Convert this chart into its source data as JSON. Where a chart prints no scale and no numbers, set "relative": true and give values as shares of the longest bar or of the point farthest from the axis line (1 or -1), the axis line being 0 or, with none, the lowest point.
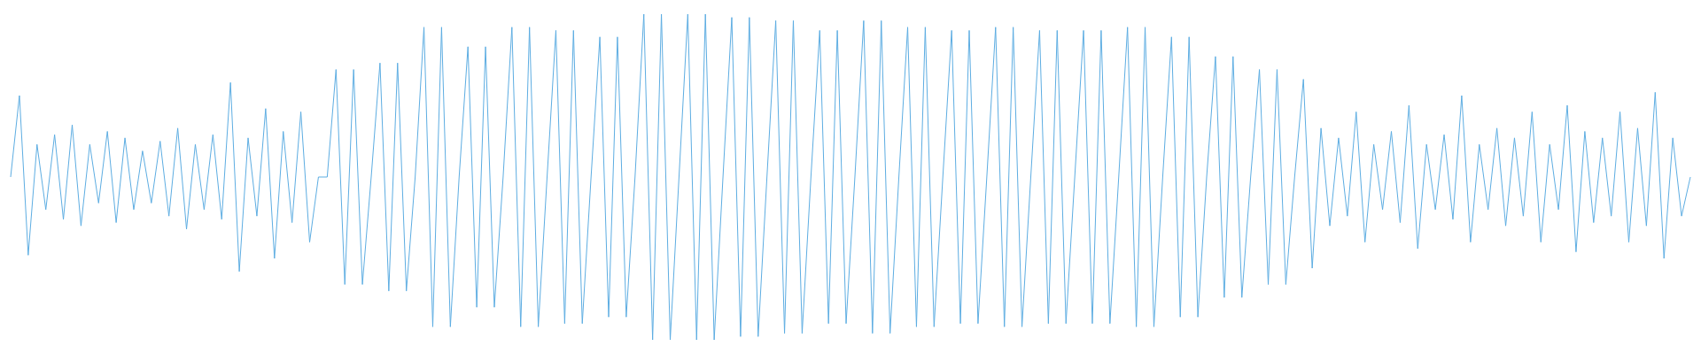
{
  "chart_data": {
    "type": "line",
    "relative": true,
    "grid": false,
    "legend": false,
    "categories": [
      null,
      null,
      null,
      null,
      null,
      null,
      null,
      null,
      null,
      null,
      null,
      null,
      null,
      null,
      null,
      null,
      null,
      null,
      null,
      null,
      null,
      null,
      null,
      null,
      null,
      null,
      null,
      null,
      null,
      null,
      null,
      null,
      null,
      null,
      null,
      null,
      null,
      null,
      null,
      null,
      null,
      null,
      null,
      null,
      null,
      null,
      null,
      null,
      null,
      null,
      null,
      null,
      null,
      null,
      null,
      null,
      null,
      null,
      null,
      null,
      null,
      null,
      null,
      null,
      null,
      null,
      null,
      null,
      null,
      null,
      null,
      null,
      null,
      null,
      null,
      null,
      null,
      null,
      null,
      null,
      null,
      null,
      null,
      null,
      null,
      null,
      null,
      null,
      null,
      null,
      null,
      null,
      null,
      null,
      null,
      null,
      null,
      null,
      null,
      null,
      null,
      null,
      null,
      null,
      null,
      null,
      null,
      null,
      null,
      null,
      null,
      null,
      null,
      null,
      null,
      null,
      null,
      null,
      null,
      null,
      null,
      null,
      null,
      null,
      null,
      null,
      null,
      null,
      null,
      null,
      null,
      null,
      null,
      null,
      null,
      null,
      null,
      null,
      null,
      null,
      null,
      null,
      null,
      null,
      null,
      null,
      null,
      null,
      null,
      null,
      null,
      null,
      null,
      null,
      null,
      null,
      null,
      null,
      null,
      null,
      null,
      null,
      null,
      null,
      null,
      null,
      null,
      null,
      null,
      null,
      null,
      null,
      null,
      null,
      null,
      null,
      null,
      null,
      null,
      null,
      null,
      null,
      null,
      null,
      null,
      null,
      null,
      null,
      null,
      null,
      null,
      null
    ],
    "series": [
      {
        "color": "#5dade2",
        "values": [
          0.5,
          0.75,
          0.26,
          0.6,
          0.4,
          0.63,
          0.37,
          0.66,
          0.35,
          0.6,
          0.42,
          0.64,
          0.36,
          0.62,
          0.4,
          0.58,
          0.42,
          0.61,
          0.38,
          0.65,
          0.34,
          0.6,
          0.4,
          0.63,
          0.37,
          0.79,
          0.21,
          0.62,
          0.38,
          0.71,
          0.25,
          0.64,
          0.36,
          0.7,
          0.3,
          0.5,
          0.5,
          0.83,
          0.17,
          0.83,
          0.17,
          0.5,
          0.85,
          0.15,
          0.85,
          0.15,
          0.5,
          0.96,
          0.04,
          0.96,
          0.04,
          0.5,
          0.9,
          0.1,
          0.9,
          0.1,
          0.5,
          0.96,
          0.04,
          0.96,
          0.04,
          0.5,
          0.95,
          0.05,
          0.95,
          0.05,
          0.5,
          0.93,
          0.07,
          0.93,
          0.07,
          0.5,
          1,
          0,
          1,
          0,
          0.5,
          1,
          0,
          1,
          0,
          0.5,
          0.99,
          0.01,
          0.99,
          0.01,
          0.5,
          0.98,
          0.02,
          0.98,
          0.02,
          0.5,
          0.95,
          0.05,
          0.95,
          0.05,
          0.5,
          0.98,
          0.02,
          0.98,
          0.02,
          0.5,
          0.96,
          0.04,
          0.96,
          0.04,
          0.5,
          0.95,
          0.05,
          0.95,
          0.05,
          0.5,
          0.96,
          0.04,
          0.96,
          0.04,
          0.5,
          0.95,
          0.05,
          0.95,
          0.05,
          0.5,
          0.95,
          0.05,
          0.95,
          0.05,
          0.5,
          0.96,
          0.04,
          0.96,
          0.04,
          0.5,
          0.93,
          0.07,
          0.93,
          0.07,
          0.5,
          0.87,
          0.13,
          0.87,
          0.13,
          0.5,
          0.83,
          0.17,
          0.83,
          0.17,
          0.5,
          0.8,
          0.22,
          0.65,
          0.35,
          0.62,
          0.38,
          0.7,
          0.3,
          0.6,
          0.4,
          0.64,
          0.36,
          0.72,
          0.28,
          0.6,
          0.4,
          0.63,
          0.37,
          0.75,
          0.3,
          0.6,
          0.4,
          0.65,
          0.35,
          0.62,
          0.38,
          0.7,
          0.3,
          0.6,
          0.4,
          0.72,
          0.27,
          0.64,
          0.36,
          0.62,
          0.38,
          0.7,
          0.3,
          0.65,
          0.35,
          0.76,
          0.25,
          0.62,
          0.38,
          0.5
        ]
      }
    ]
  }
}
